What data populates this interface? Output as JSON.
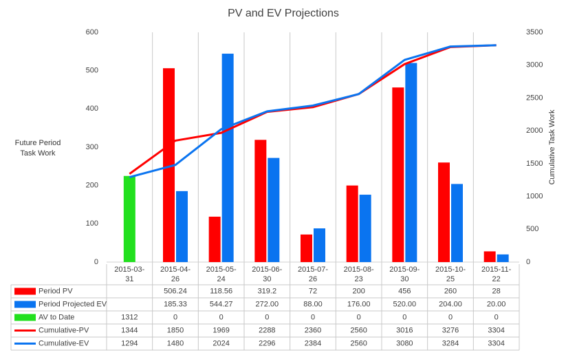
{
  "chart_data": {
    "type": "bar",
    "title": "PV and EV Projections",
    "y_label": "Future Period Task Work",
    "y2_label": "Cumulative Task Work",
    "categories": [
      "2015-03-31",
      "2015-04-26",
      "2015-05-24",
      "2015-06-30",
      "2015-07-26",
      "2015-08-23",
      "2015-09-30",
      "2015-10-25",
      "2015-11-22"
    ],
    "ylim": [
      0,
      600
    ],
    "yticks": [
      0,
      100,
      200,
      300,
      400,
      500,
      600
    ],
    "y2lim": [
      0,
      3500
    ],
    "y2ticks": [
      0,
      500,
      1000,
      1500,
      2000,
      2500,
      3000,
      3500
    ],
    "series": [
      {
        "name": "Period PV",
        "type": "bar",
        "color": "#ff0000",
        "values": [
          null,
          506.24,
          118.56,
          319.2,
          72,
          200,
          456,
          260,
          28
        ]
      },
      {
        "name": "Period Projected EV",
        "type": "bar",
        "color": "#0a74f0",
        "values": [
          null,
          185.33,
          544.27,
          272,
          88,
          176,
          520,
          204,
          20
        ],
        "value_labels": [
          null,
          "185.33",
          "544.27",
          "272.00",
          "88.00",
          "176.00",
          "520.00",
          "204.00",
          "20.00"
        ]
      },
      {
        "name": "AV to Date",
        "type": "bar",
        "axis": "y2",
        "color": "#22e01e",
        "values": [
          1312,
          0,
          0,
          0,
          0,
          0,
          0,
          0,
          0
        ]
      },
      {
        "name": "Cumulative-PV",
        "type": "line",
        "axis": "y2",
        "color": "#ff0000",
        "values": [
          1344,
          1850,
          1969,
          2288,
          2360,
          2560,
          3016,
          3276,
          3304
        ]
      },
      {
        "name": "Cumulative-EV",
        "type": "line",
        "axis": "y2",
        "color": "#0a74f0",
        "values": [
          1294,
          1480,
          2024,
          2296,
          2384,
          2560,
          3080,
          3284,
          3304
        ]
      }
    ]
  }
}
